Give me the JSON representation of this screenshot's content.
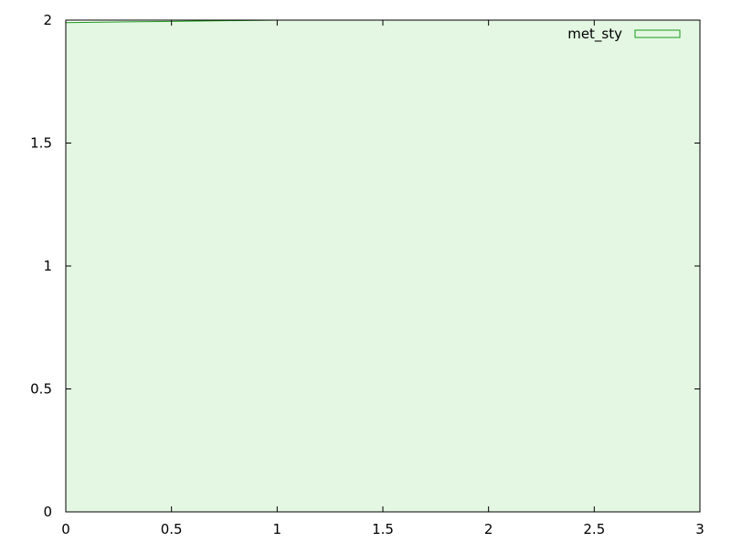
{
  "chart_data": {
    "type": "area",
    "title": "",
    "xlabel": "",
    "ylabel": "",
    "xlim": [
      0,
      3
    ],
    "ylim": [
      0,
      2
    ],
    "x_ticks": [
      "0",
      "0.5",
      "1",
      "1.5",
      "2",
      "2.5",
      "3"
    ],
    "y_ticks": [
      "0",
      "0.5",
      "1",
      "1.5",
      "2"
    ],
    "grid": false,
    "legend_position": "top-right",
    "series": [
      {
        "name": "met_sty",
        "x": [
          0,
          0.5,
          1,
          1.5,
          2,
          2.5,
          3
        ],
        "y": [
          1.99,
          1.995,
          2,
          2,
          2,
          2,
          2
        ],
        "fill_color": "#e3f7e3",
        "line_color": "#1a9a1a"
      }
    ]
  }
}
